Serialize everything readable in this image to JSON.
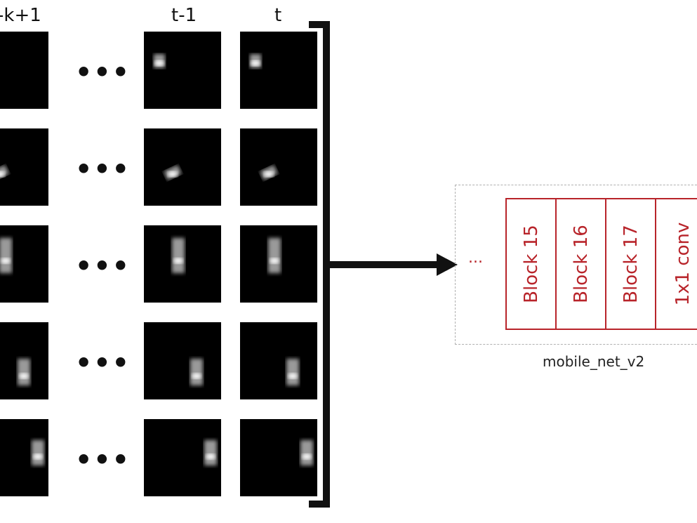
{
  "columns": {
    "first": "-k+1",
    "second_last": "t-1",
    "last": "t"
  },
  "row_separator": "•••",
  "network": {
    "ellipsis": "...",
    "blocks": [
      "Block 15",
      "Block 16",
      "Block 17",
      "1x1 conv"
    ],
    "label": "mobile_net_v2"
  },
  "colors": {
    "accent": "#b8242a",
    "frame": "#000000",
    "ink": "#111111"
  }
}
